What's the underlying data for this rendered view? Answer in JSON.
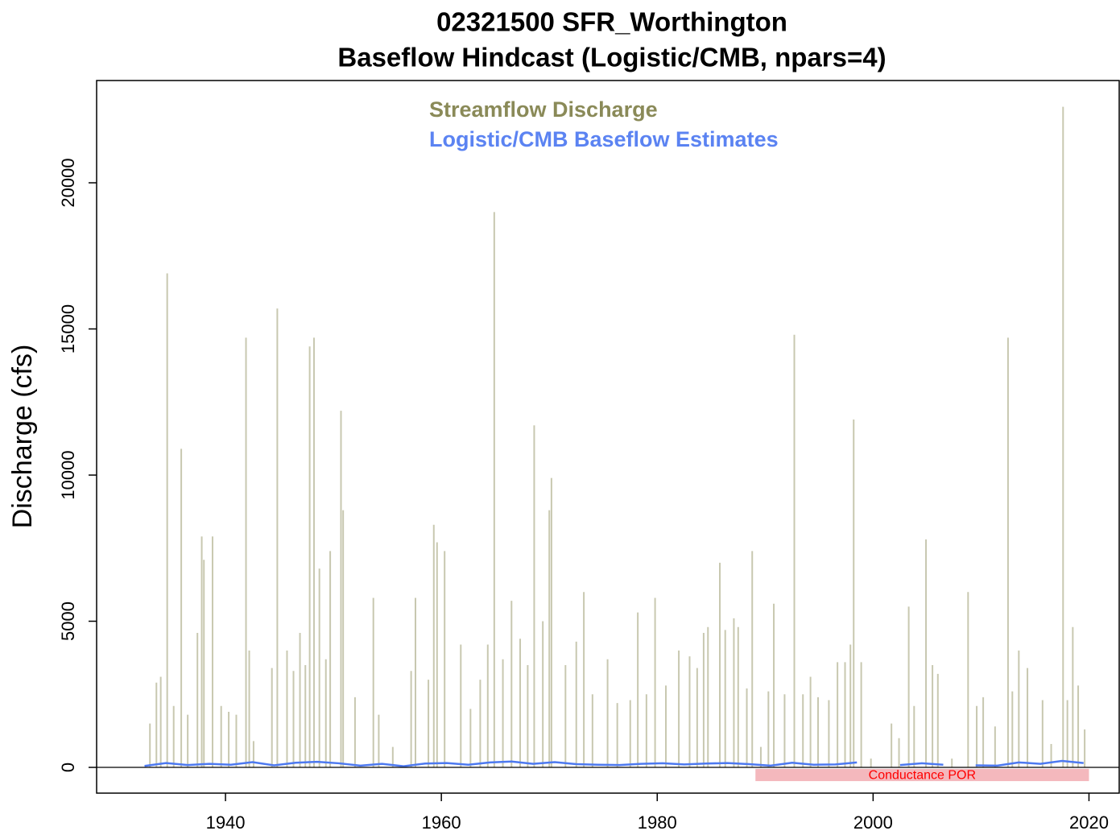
{
  "chart_data": {
    "type": "spike",
    "title": "02321500 SFR_Worthington",
    "subtitle": "Baseflow Hindcast (Logistic/CMB, npars=4)",
    "y_label": "Discharge (cfs)",
    "xlim": [
      1928.06,
      2022.8
    ],
    "ylim": [
      -881,
      23499
    ],
    "xticks": [
      1940,
      1960,
      1980,
      2000,
      2020
    ],
    "yticks": [
      0,
      5000,
      10000,
      15000,
      20000
    ],
    "hline": 0,
    "legend": "top",
    "series": [
      {
        "name": "Streamflow Discharge",
        "color": "#c8c8b0",
        "legend_color": "#8a8a58",
        "type": "spike",
        "x": [
          1933.0,
          1933.6,
          1934.0,
          1934.6,
          1935.2,
          1935.9,
          1936.5,
          1937.4,
          1937.8,
          1938.0,
          1938.8,
          1939.6,
          1940.3,
          1941.0,
          1941.9,
          1942.2,
          1942.6,
          1944.3,
          1944.8,
          1945.7,
          1946.3,
          1946.9,
          1947.4,
          1947.8,
          1948.2,
          1948.7,
          1949.3,
          1949.7,
          1950.7,
          1950.9,
          1952.0,
          1953.7,
          1954.2,
          1955.5,
          1957.2,
          1957.6,
          1958.8,
          1959.3,
          1959.6,
          1960.3,
          1961.8,
          1962.7,
          1963.6,
          1964.3,
          1964.9,
          1965.7,
          1966.5,
          1967.3,
          1968.0,
          1968.6,
          1969.4,
          1970.0,
          1970.2,
          1971.5,
          1972.5,
          1973.2,
          1974.0,
          1975.4,
          1976.3,
          1977.5,
          1978.2,
          1979.0,
          1979.8,
          1980.8,
          1982.0,
          1983.0,
          1983.7,
          1984.3,
          1984.7,
          1985.8,
          1986.3,
          1987.1,
          1987.5,
          1988.3,
          1988.8,
          1989.6,
          1990.3,
          1990.8,
          1991.8,
          1992.7,
          1993.5,
          1994.2,
          1994.9,
          1995.9,
          1996.7,
          1997.4,
          1997.9,
          1998.2,
          1998.9,
          1999.8,
          2001.7,
          2002.4,
          2003.3,
          2003.8,
          2004.9,
          2005.5,
          2006.0,
          2007.3,
          2008.8,
          2009.6,
          2010.2,
          2011.3,
          2012.5,
          2012.9,
          2013.5,
          2014.3,
          2015.7,
          2016.5,
          2017.6,
          2018.0,
          2018.5,
          2019.0,
          2019.6
        ],
        "values": [
          1500,
          2900,
          3100,
          16900,
          2100,
          10900,
          1800,
          4600,
          7900,
          7100,
          7900,
          2100,
          1900,
          1800,
          14700,
          4000,
          900,
          3400,
          15700,
          4000,
          3300,
          4600,
          3500,
          14400,
          14700,
          6800,
          3700,
          7400,
          12200,
          8800,
          2400,
          5800,
          1800,
          700,
          3300,
          5800,
          3000,
          8300,
          7700,
          7400,
          4200,
          2000,
          3000,
          4200,
          19000,
          3700,
          5700,
          4400,
          3500,
          11700,
          5000,
          8800,
          9900,
          3500,
          4300,
          6000,
          2500,
          3700,
          2200,
          2300,
          5300,
          2500,
          5800,
          2800,
          4000,
          3800,
          3400,
          4600,
          4800,
          7000,
          4700,
          5100,
          4800,
          2700,
          7400,
          700,
          2600,
          5600,
          2500,
          14800,
          2500,
          3100,
          2400,
          2300,
          3600,
          3600,
          4200,
          11900,
          3600,
          300,
          1500,
          1000,
          5500,
          2100,
          7800,
          3500,
          3200,
          300,
          6000,
          2100,
          2400,
          1400,
          14700,
          2600,
          4000,
          3400,
          2300,
          800,
          22600,
          2300,
          4800,
          2800,
          1300
        ]
      },
      {
        "name": "Logistic/CMB Baseflow Estimates",
        "color": "#4d79f0",
        "legend_color": "#5b83f2",
        "type": "line",
        "x": [
          1932.5,
          1934.5,
          1936.5,
          1938.5,
          1940.5,
          1942.5,
          1944.5,
          1946.5,
          1948.5,
          1950.5,
          1952.5,
          1954.5,
          1956.5,
          1958.5,
          1960.5,
          1962.5,
          1964.5,
          1966.5,
          1968.5,
          1970.5,
          1972.5,
          1974.5,
          1976.5,
          1978.5,
          1980.5,
          1982.5,
          1984.5,
          1986.5,
          1988.5,
          1990.5,
          1992.5,
          1994.5,
          1996.5,
          1998.5,
          2000.5,
          2002.5,
          2004.5,
          2006.5,
          2007.5,
          2009.5,
          2011.5,
          2013.5,
          2015.5,
          2017.5,
          2019.5
        ],
        "values": [
          50,
          150,
          80,
          120,
          90,
          180,
          70,
          160,
          190,
          140,
          60,
          120,
          40,
          130,
          150,
          90,
          170,
          200,
          120,
          180,
          110,
          90,
          80,
          120,
          140,
          100,
          130,
          150,
          110,
          60,
          160,
          90,
          100,
          170,
          null,
          80,
          140,
          90,
          null,
          70,
          60,
          170,
          120,
          220,
          150
        ]
      }
    ],
    "annotation": {
      "label": "Conductance POR",
      "color": "#f4b8bd",
      "text_color": "#ff0000",
      "x": [
        1989.1,
        2020
      ],
      "y": [
        -50,
        -470
      ]
    }
  }
}
